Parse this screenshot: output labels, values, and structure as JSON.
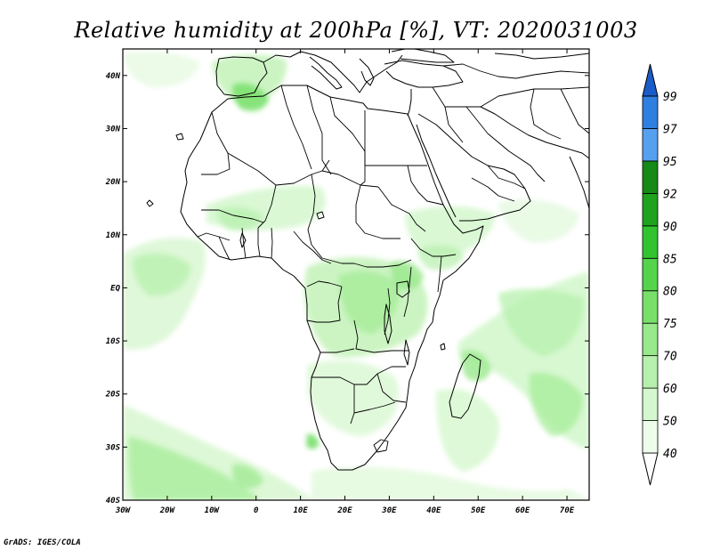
{
  "title": "Relative humidity at 200hPa [%], VT: 2020031003",
  "credit": "GrADS: IGES/COLA",
  "map": {
    "lon_range": [
      -30,
      75
    ],
    "lat_range": [
      -40,
      45
    ],
    "lon_ticks": [
      {
        "value": -30,
        "label": "30W"
      },
      {
        "value": -20,
        "label": "20W"
      },
      {
        "value": -10,
        "label": "10W"
      },
      {
        "value": 0,
        "label": "0"
      },
      {
        "value": 10,
        "label": "10E"
      },
      {
        "value": 20,
        "label": "20E"
      },
      {
        "value": 30,
        "label": "30E"
      },
      {
        "value": 40,
        "label": "40E"
      },
      {
        "value": 50,
        "label": "50E"
      },
      {
        "value": 60,
        "label": "60E"
      },
      {
        "value": 70,
        "label": "70E"
      }
    ],
    "lat_ticks": [
      {
        "value": 40,
        "label": "40N"
      },
      {
        "value": 30,
        "label": "30N"
      },
      {
        "value": 20,
        "label": "20N"
      },
      {
        "value": 10,
        "label": "10N"
      },
      {
        "value": 0,
        "label": "EQ"
      },
      {
        "value": -10,
        "label": "10S"
      },
      {
        "value": -20,
        "label": "20S"
      },
      {
        "value": -30,
        "label": "30S"
      },
      {
        "value": -40,
        "label": "40S"
      }
    ]
  },
  "colorbar": {
    "levels": [
      "40",
      "50",
      "60",
      "70",
      "75",
      "80",
      "85",
      "90",
      "92",
      "95",
      "97",
      "99"
    ],
    "colors": [
      "#eefcea",
      "#d4f7cd",
      "#b6f0ac",
      "#98e88c",
      "#78df6b",
      "#55d44b",
      "#32c430",
      "#1fa31f",
      "#168a16",
      "#56a0f0",
      "#2f7fe0",
      "#1a5cc8"
    ],
    "under_color": "#ffffff",
    "over_color": "#1a5cc8"
  }
}
